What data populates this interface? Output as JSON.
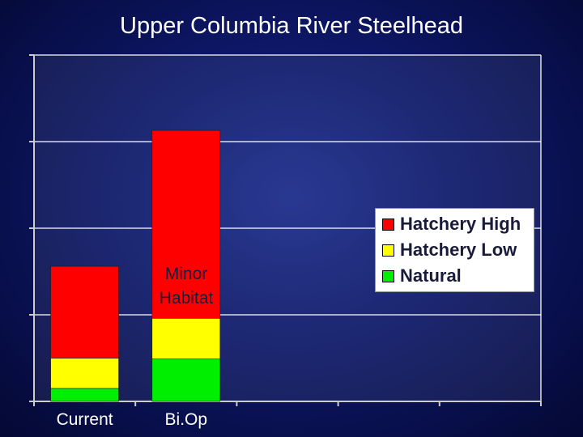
{
  "page": {
    "title": "Upper Columbia River Steelhead"
  },
  "chart_data": {
    "type": "bar",
    "stacked": true,
    "categories": [
      "Current",
      "Bi.Op"
    ],
    "series": [
      {
        "name": "Natural",
        "color": "#00ee00",
        "values": [
          0.15,
          0.49
        ]
      },
      {
        "name": "Hatchery Low",
        "color": "#ffff00",
        "values": [
          0.35,
          0.47
        ]
      },
      {
        "name": "Hatchery High",
        "color": "#ff0000",
        "values": [
          1.06,
          2.17
        ]
      }
    ],
    "ylim": [
      0,
      4
    ],
    "grid": true,
    "legend": {
      "position": "right",
      "items": [
        {
          "label": "Hatchery High",
          "color": "#ff0000"
        },
        {
          "label": "Hatchery Low",
          "color": "#ffff00"
        },
        {
          "label": "Natural",
          "color": "#00ee00"
        }
      ]
    },
    "annotations": [
      "Minor\nHabitat"
    ],
    "plot_background": "#dde1ef",
    "gridline_color": "#ffffff"
  }
}
